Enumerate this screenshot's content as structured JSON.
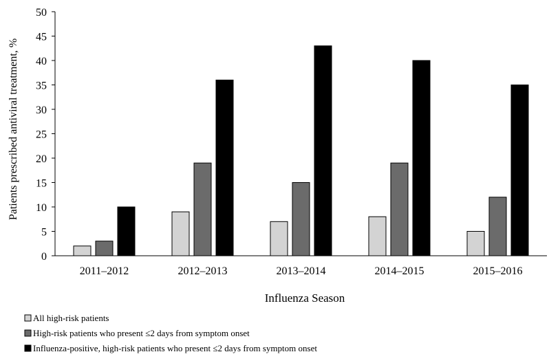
{
  "chart_data": {
    "type": "bar",
    "categories": [
      "2011–2012",
      "2012–2013",
      "2013–2014",
      "2014–2015",
      "2015–2016"
    ],
    "series": [
      {
        "name": "All high-risk patients",
        "values": [
          2,
          9,
          7,
          8,
          5
        ],
        "color": "#d3d3d3"
      },
      {
        "name": "High-risk patients who present ≤2 days from symptom onset",
        "values": [
          3,
          19,
          15,
          19,
          12
        ],
        "color": "#6b6b6b"
      },
      {
        "name": "Influenza-positive, high-risk patients who present ≤2 days from symptom onset",
        "values": [
          10,
          36,
          43,
          40,
          35
        ],
        "color": "#000000"
      }
    ],
    "xlabel": "Influenza Season",
    "ylabel": "Patients prescribed antiviral treatment, %",
    "ylim": [
      0,
      50
    ],
    "yticks": [
      0,
      5,
      10,
      15,
      20,
      25,
      30,
      35,
      40,
      45,
      50
    ],
    "grid": false,
    "legend_position": "bottom-left"
  }
}
